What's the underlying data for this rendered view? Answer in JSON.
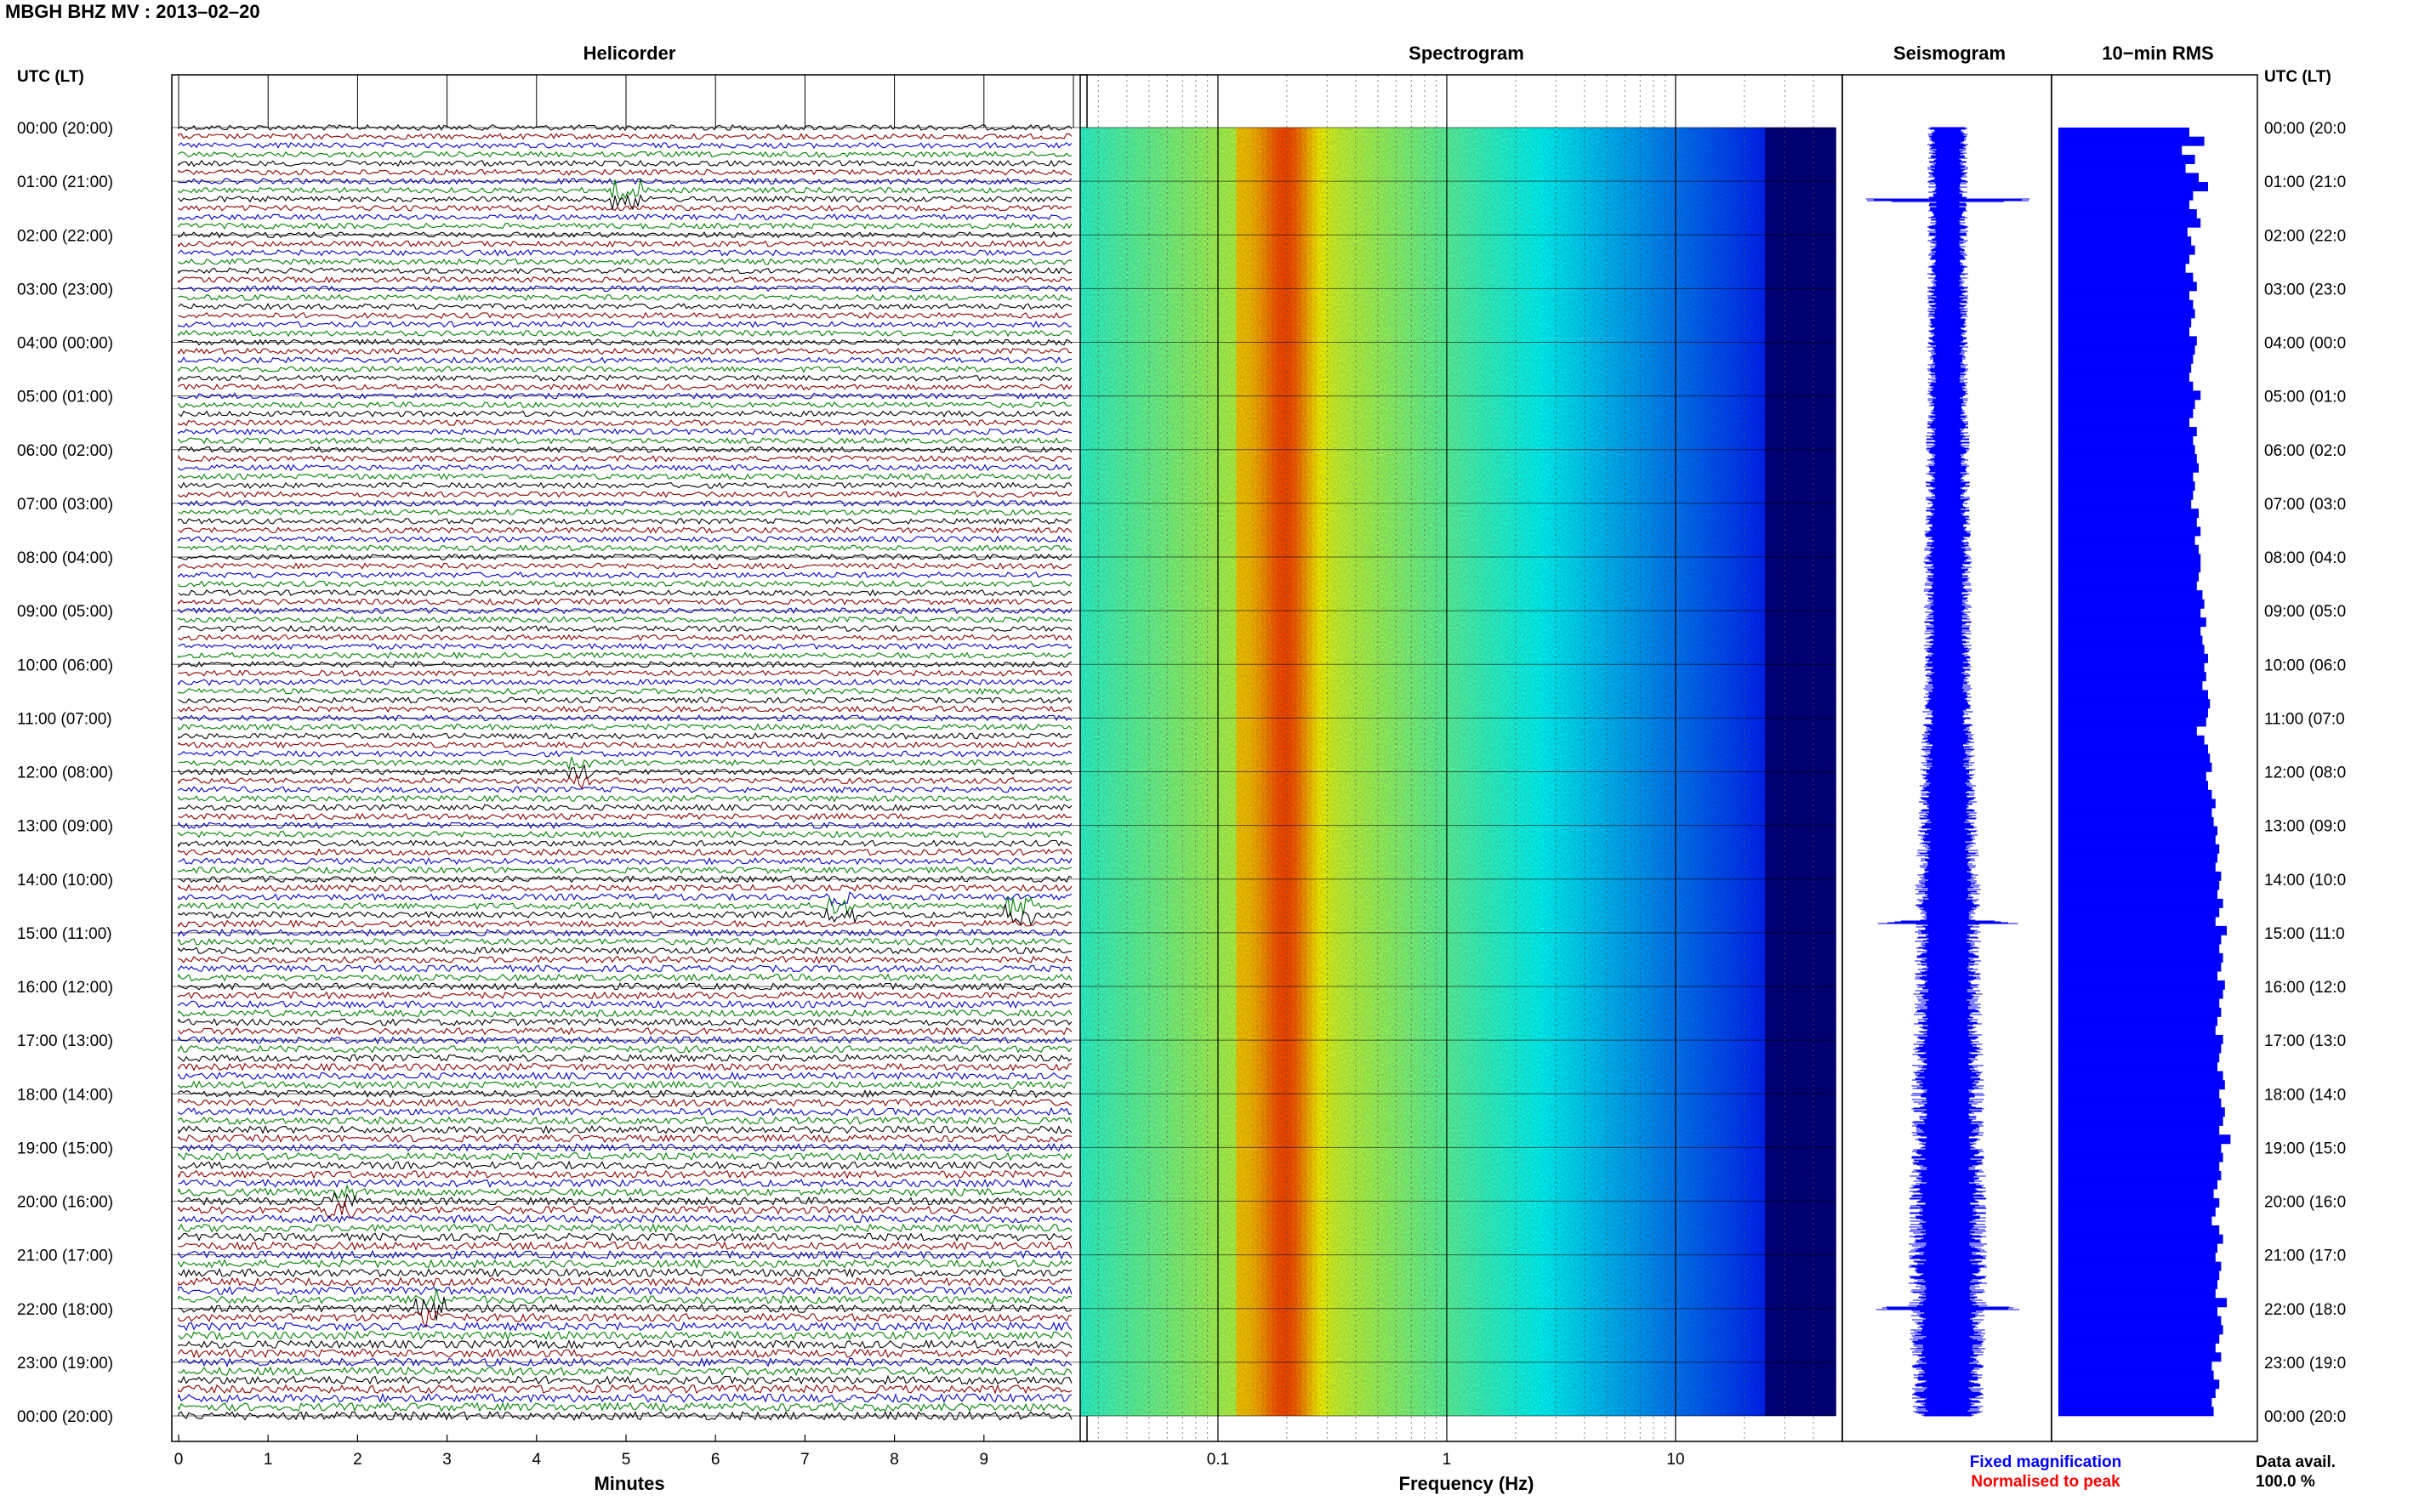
{
  "header": {
    "title": "MBGH BHZ MV : 2013–02–20"
  },
  "columns": {
    "utc_lt_left": "UTC (LT)",
    "utc_lt_right": "UTC (LT)",
    "helicorder": "Helicorder",
    "spectrogram": "Spectrogram",
    "seismogram": "Seismogram",
    "rms": "10−min RMS"
  },
  "time_labels_left": [
    "00:00 (20:00)",
    "01:00 (21:00)",
    "02:00 (22:00)",
    "03:00 (23:00)",
    "04:00 (00:00)",
    "05:00 (01:00)",
    "06:00 (02:00)",
    "07:00 (03:00)",
    "08:00 (04:00)",
    "09:00 (05:00)",
    "10:00 (06:00)",
    "11:00 (07:00)",
    "12:00 (08:00)",
    "13:00 (09:00)",
    "14:00 (10:00)",
    "15:00 (11:00)",
    "16:00 (12:00)",
    "17:00 (13:00)",
    "18:00 (14:00)",
    "19:00 (15:00)",
    "20:00 (16:00)",
    "21:00 (17:00)",
    "22:00 (18:00)",
    "23:00 (19:00)",
    "00:00 (20:00)"
  ],
  "time_labels_right": [
    "00:00 (20:0",
    "01:00 (21:0",
    "02:00 (22:0",
    "03:00 (23:0",
    "04:00 (00:0",
    "05:00 (01:0",
    "06:00 (02:0",
    "07:00 (03:0",
    "08:00 (04:0",
    "09:00 (05:0",
    "10:00 (06:0",
    "11:00 (07:0",
    "12:00 (08:0",
    "13:00 (09:0",
    "14:00 (10:0",
    "15:00 (11:0",
    "16:00 (12:0",
    "17:00 (13:0",
    "18:00 (14:0",
    "19:00 (15:0",
    "20:00 (16:0",
    "21:00 (17:0",
    "22:00 (18:0",
    "23:00 (19:0",
    "00:00 (20:0"
  ],
  "footer": {
    "minutes_label": "Minutes",
    "frequency_label": "Frequency (Hz)",
    "legend_fixed": "Fixed magnification",
    "legend_normalised": "Normalised to peak",
    "data_avail_label": "Data avail.",
    "data_avail_value": "100.0 %"
  },
  "colors": {
    "trace_cycle": [
      "#000000",
      "#8b0000",
      "#0000c8",
      "#008000"
    ],
    "fixed": "#0000ff",
    "normalised": "#ff0000",
    "rms_bar": "#0000ff",
    "seismogram": "#0000ff"
  },
  "chart_data": [
    {
      "type": "line",
      "name": "helicorder",
      "title": "Helicorder",
      "xlabel": "Minutes",
      "x_ticks": [
        "0",
        "1",
        "2",
        "3",
        "4",
        "5",
        "6",
        "7",
        "8",
        "9"
      ],
      "xlim": [
        0,
        10
      ],
      "traces_per_hour": 6,
      "hours": 24,
      "events": [
        {
          "hour": 1.3,
          "minute": 5.0,
          "strength": 2.5
        },
        {
          "hour": 14.5,
          "minute": 7.4,
          "strength": 1.6
        },
        {
          "hour": 14.6,
          "minute": 9.4,
          "strength": 2.2
        },
        {
          "hour": 20.0,
          "minute": 1.8,
          "strength": 1.5
        },
        {
          "hour": 22.0,
          "minute": 2.8,
          "strength": 2.4
        },
        {
          "hour": 12.0,
          "minute": 4.5,
          "strength": 1.4
        }
      ]
    },
    {
      "type": "heatmap",
      "name": "spectrogram",
      "title": "Spectrogram",
      "xlabel": "Frequency (Hz)",
      "x_scale": "log",
      "xlim": [
        0.025,
        50
      ],
      "x_ticks": [
        0.1,
        1,
        10
      ],
      "x_tick_labels": [
        "0.1",
        "1",
        "10"
      ],
      "peak_frequency_hz": 0.2,
      "colormap": "jet"
    },
    {
      "type": "line",
      "name": "seismogram",
      "title": "Seismogram",
      "envelope_by_hour": [
        0.22,
        0.22,
        0.22,
        0.22,
        0.22,
        0.22,
        0.24,
        0.24,
        0.26,
        0.26,
        0.26,
        0.27,
        0.3,
        0.32,
        0.35,
        0.37,
        0.37,
        0.37,
        0.4,
        0.4,
        0.42,
        0.42,
        0.42,
        0.4,
        0.38
      ],
      "spikes": [
        {
          "hour": 1.35,
          "amp": 1.0
        },
        {
          "hour": 14.8,
          "amp": 0.75
        },
        {
          "hour": 22.0,
          "amp": 0.85
        }
      ]
    },
    {
      "type": "bar",
      "name": "rms",
      "title": "10−min RMS",
      "orientation": "horizontal",
      "values": [
        0.7,
        0.78,
        0.66,
        0.73,
        0.68,
        0.75,
        0.8,
        0.72,
        0.7,
        0.74,
        0.76,
        0.69,
        0.71,
        0.73,
        0.7,
        0.68,
        0.72,
        0.74,
        0.7,
        0.72,
        0.73,
        0.71,
        0.7,
        0.74,
        0.73,
        0.72,
        0.71,
        0.7,
        0.72,
        0.76,
        0.73,
        0.72,
        0.7,
        0.74,
        0.72,
        0.73,
        0.74,
        0.75,
        0.72,
        0.73,
        0.72,
        0.71,
        0.75,
        0.74,
        0.76,
        0.73,
        0.75,
        0.76,
        0.76,
        0.75,
        0.74,
        0.77,
        0.78,
        0.76,
        0.79,
        0.76,
        0.77,
        0.78,
        0.8,
        0.78,
        0.79,
        0.77,
        0.8,
        0.81,
        0.8,
        0.79,
        0.74,
        0.78,
        0.8,
        0.81,
        0.82,
        0.79,
        0.8,
        0.82,
        0.84,
        0.82,
        0.83,
        0.85,
        0.84,
        0.86,
        0.85,
        0.84,
        0.87,
        0.86,
        0.85,
        0.88,
        0.86,
        0.84,
        0.9,
        0.87,
        0.86,
        0.88,
        0.87,
        0.85,
        0.89,
        0.88,
        0.86,
        0.87,
        0.85,
        0.84,
        0.88,
        0.87,
        0.86,
        0.85,
        0.88,
        0.89,
        0.86,
        0.87,
        0.89,
        0.88,
        0.86,
        0.92,
        0.87,
        0.88,
        0.86,
        0.87,
        0.85,
        0.83,
        0.86,
        0.84,
        0.82,
        0.86,
        0.88,
        0.85,
        0.84,
        0.87,
        0.86,
        0.85,
        0.84,
        0.9,
        0.85,
        0.87,
        0.88,
        0.86,
        0.84,
        0.87,
        0.82,
        0.83,
        0.86,
        0.84,
        0.82,
        0.83
      ],
      "xlim": [
        0,
        1
      ]
    }
  ]
}
